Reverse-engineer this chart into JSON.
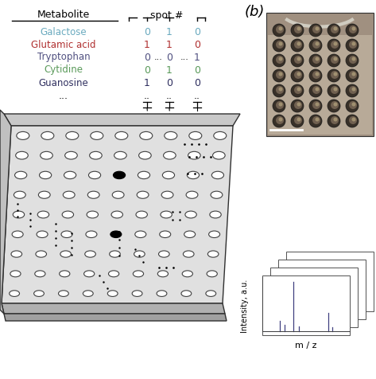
{
  "metabolites": [
    "Galactose",
    "Glutamic acid",
    "Tryptophan",
    "Cytidine",
    "Guanosine"
  ],
  "metabolite_colors": [
    "#6aaabf",
    "#b03030",
    "#505080",
    "#5a9a5a",
    "#303060"
  ],
  "bg_color": "#ffffff",
  "plate_top_color": "#c8c8c8",
  "plate_main_color": "#e0e0e0",
  "plate_side_color": "#b0b0b0",
  "plate_bottom_color": "#a0a0a0",
  "spec_color": "#404080",
  "photo_bg": "#b0a898",
  "photo_well_color": "#504840",
  "b_label": "(b)"
}
